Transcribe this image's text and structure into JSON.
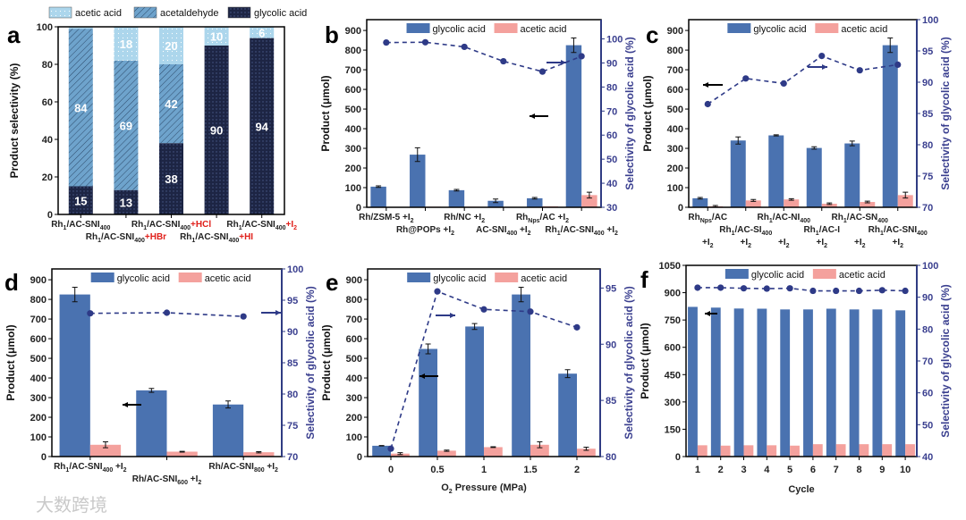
{
  "colors": {
    "glycolic": "#4a72b0",
    "acetic": "#f4a19d",
    "line": "#2e3a87",
    "a_glycolic": "#1d2544",
    "a_acetaldehyde": "#6ea3cc",
    "a_acetic": "#acd6ec",
    "red": "#e0201b"
  },
  "watermark": "大数跨境",
  "chart_data": [
    {
      "id": "a",
      "type": "bar",
      "stacked": true,
      "panel_label": "a",
      "ylabel": "Product selectivity (%)",
      "ylim": [
        0,
        100
      ],
      "yticks": [
        0,
        20,
        40,
        60,
        80,
        100
      ],
      "legend": [
        "acetic acid",
        "acetaldehyde",
        "glycolic acid"
      ],
      "categories": [
        {
          "base": "Rh_{1}/AC-SNI_{400}",
          "suffix": ""
        },
        {
          "base": "Rh_{1}/AC-SNI_{400}",
          "suffix": "+HBr"
        },
        {
          "base": "Rh_{1}/AC-SNI_{400}",
          "suffix": "+HCl"
        },
        {
          "base": "Rh_{1}/AC-SNI_{400}",
          "suffix": "+HI"
        },
        {
          "base": "Rh_{1}/AC-SNI_{400}",
          "suffix": "+I_{2}"
        }
      ],
      "series": [
        {
          "name": "glycolic acid",
          "values": [
            15,
            13,
            38,
            90,
            94
          ],
          "labels": [
            "15",
            "13",
            "38",
            "90",
            "94"
          ]
        },
        {
          "name": "acetaldehyde",
          "values": [
            84,
            69,
            42,
            0,
            0
          ],
          "labels": [
            "84",
            "69",
            "42",
            "",
            ""
          ]
        },
        {
          "name": "acetic acid",
          "values": [
            1,
            18,
            20,
            10,
            6
          ],
          "labels": [
            "",
            "18",
            "20",
            "10",
            "6"
          ]
        }
      ]
    },
    {
      "id": "b",
      "type": "bar+line",
      "panel_label": "b",
      "ylabel": "Product (μmol)",
      "ylim": [
        0,
        955
      ],
      "yticks": [
        0,
        100,
        200,
        300,
        400,
        500,
        600,
        700,
        800,
        900
      ],
      "y2label": "Selectivity of glycolic acid (%)",
      "y2lim": [
        30,
        108
      ],
      "y2ticks": [
        30,
        40,
        50,
        60,
        70,
        80,
        90,
        100
      ],
      "legend": [
        "glycolic acid",
        "acetic acid"
      ],
      "categories": [
        "Rh/ZSM-5 +I_{2}",
        "Rh@POPs +I_{2}",
        "Rh/NC +I_{2}",
        "AC-SNI_{400} +I_{2}",
        "Rh_{Nps}/AC +I_{2}",
        "Rh_{1}/AC-SNI_{400} +I_{2}"
      ],
      "glycolic": [
        105,
        268,
        87,
        33,
        46,
        825
      ],
      "glycolic_err": [
        4,
        35,
        4,
        9,
        4,
        37
      ],
      "acetic": [
        0,
        3,
        3,
        2,
        5,
        62
      ],
      "acetic_err": [
        0,
        0,
        0,
        0,
        0,
        15
      ],
      "selectivity": [
        98.5,
        98.6,
        96.7,
        90.7,
        86.4,
        92.8
      ]
    },
    {
      "id": "c",
      "type": "bar+line",
      "panel_label": "c",
      "ylabel": "Product (μmol)",
      "ylim": [
        0,
        955
      ],
      "yticks": [
        0,
        100,
        200,
        300,
        400,
        500,
        600,
        700,
        800,
        900
      ],
      "y2label": "Selectivity of glycolic acid (%)",
      "y2lim": [
        70,
        100
      ],
      "y2ticks": [
        70,
        75,
        80,
        85,
        90,
        95,
        100
      ],
      "legend": [
        "glycolic acid",
        "acetic acid"
      ],
      "categories": [
        "Rh_{Nps}/AC",
        "Rh_{1}/AC-SI_{400}",
        "Rh_{1}/AC-NI_{400}",
        "Rh_{1}/AC-I",
        "Rh_{1}/AC-SN_{400}",
        "Rh_{1}/AC-SNI_{400}"
      ],
      "category_suffix": "+I_{2}",
      "glycolic": [
        46,
        340,
        366,
        302,
        325,
        825
      ],
      "glycolic_err": [
        4,
        18,
        3,
        6,
        12,
        37
      ],
      "acetic": [
        5,
        35,
        40,
        18,
        27,
        62
      ],
      "acetic_err": [
        4,
        5,
        4,
        4,
        4,
        15
      ],
      "selectivity": [
        86.5,
        90.6,
        89.8,
        94.2,
        91.9,
        92.8
      ]
    },
    {
      "id": "d",
      "type": "bar+line",
      "panel_label": "d",
      "ylabel": "Product (μmol)",
      "ylim": [
        0,
        955
      ],
      "yticks": [
        0,
        100,
        200,
        300,
        400,
        500,
        600,
        700,
        800,
        900
      ],
      "y2label": "Selectivity of glycolic acid (%)",
      "y2lim": [
        70,
        100
      ],
      "y2ticks": [
        70,
        75,
        80,
        85,
        90,
        95,
        100
      ],
      "legend": [
        "glycolic acid",
        "acetic acid"
      ],
      "categories": [
        "Rh_{1}/AC-SNI_{400} +I_{2}",
        "Rh/AC-SNI_{600} +I_{2}",
        "Rh/AC-SNI_{800} +I_{2}"
      ],
      "glycolic": [
        825,
        337,
        265
      ],
      "glycolic_err": [
        37,
        10,
        18
      ],
      "acetic": [
        60,
        25,
        22
      ],
      "acetic_err": [
        15,
        2,
        3
      ],
      "selectivity": [
        92.9,
        93.0,
        92.4
      ]
    },
    {
      "id": "e",
      "type": "bar+line",
      "panel_label": "e",
      "xlabel": "O_{2} Pressure (MPa)",
      "ylabel": "Product (μmol)",
      "ylim": [
        0,
        955
      ],
      "yticks": [
        0,
        100,
        200,
        300,
        400,
        500,
        600,
        700,
        800,
        900
      ],
      "y2label": "Selectivity of glycolic acid (%)",
      "y2lim": [
        80,
        96.7
      ],
      "y2ticks": [
        80,
        85,
        90,
        95
      ],
      "legend": [
        "glycolic acid",
        "acetic acid"
      ],
      "categories": [
        "0",
        "0.5",
        "1",
        "1.5",
        "2"
      ],
      "glycolic": [
        55,
        548,
        662,
        825,
        422
      ],
      "glycolic_err": [
        1,
        25,
        15,
        37,
        20
      ],
      "acetic": [
        15,
        30,
        48,
        60,
        40
      ],
      "acetic_err": [
        5,
        3,
        2,
        15,
        8
      ],
      "selectivity": [
        80.7,
        94.7,
        93.1,
        92.9,
        91.5
      ]
    },
    {
      "id": "f",
      "type": "bar+line",
      "panel_label": "f",
      "xlabel": "Cycle",
      "ylabel": "Product (μmol)",
      "ylim": [
        0,
        1050
      ],
      "yticks": [
        0,
        150,
        300,
        450,
        600,
        750,
        900,
        1050
      ],
      "y2label": "Selectivity of glycolic acid (%)",
      "y2lim": [
        40,
        100
      ],
      "y2ticks": [
        40,
        50,
        60,
        70,
        80,
        90,
        100
      ],
      "legend": [
        "glycolic acid",
        "acetic acid"
      ],
      "categories": [
        "1",
        "2",
        "3",
        "4",
        "5",
        "6",
        "7",
        "8",
        "9",
        "10"
      ],
      "glycolic": [
        822,
        818,
        813,
        812,
        808,
        808,
        812,
        808,
        808,
        803
      ],
      "glycolic_err": [
        0,
        0,
        0,
        0,
        0,
        0,
        0,
        0,
        0,
        0
      ],
      "acetic": [
        62,
        60,
        62,
        62,
        60,
        68,
        68,
        68,
        68,
        68
      ],
      "acetic_err": [
        0,
        0,
        0,
        0,
        0,
        0,
        0,
        0,
        0,
        0
      ],
      "selectivity": [
        93.0,
        93.0,
        92.8,
        92.7,
        92.8,
        92.0,
        92.0,
        92.0,
        92.2,
        92.0
      ]
    }
  ]
}
